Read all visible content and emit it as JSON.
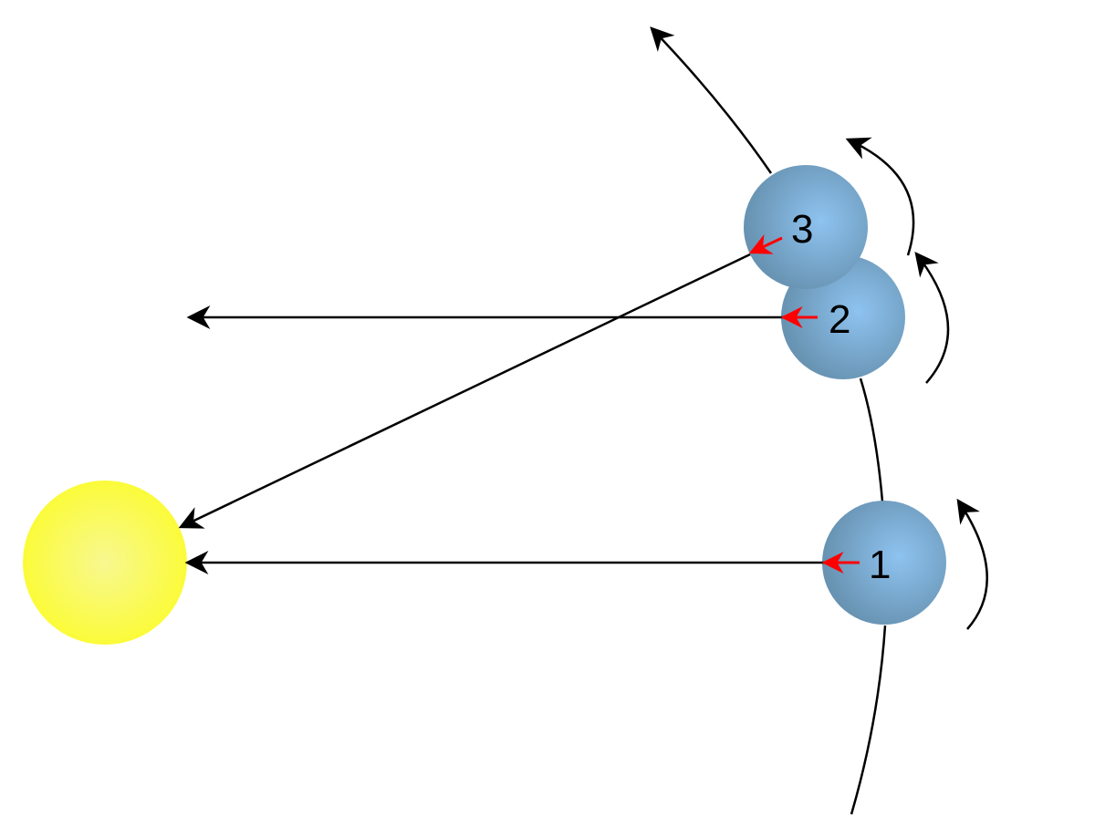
{
  "diagram": {
    "planet_labels": [
      "1",
      "2",
      "3"
    ],
    "colors": {
      "sun": "#fbfb3c",
      "sun_center": "#f8f888",
      "planet_edge": "#6a98b8",
      "planet_center": "#8cc0ee",
      "line": "#000000",
      "direction_arrow": "#ff0000"
    }
  }
}
